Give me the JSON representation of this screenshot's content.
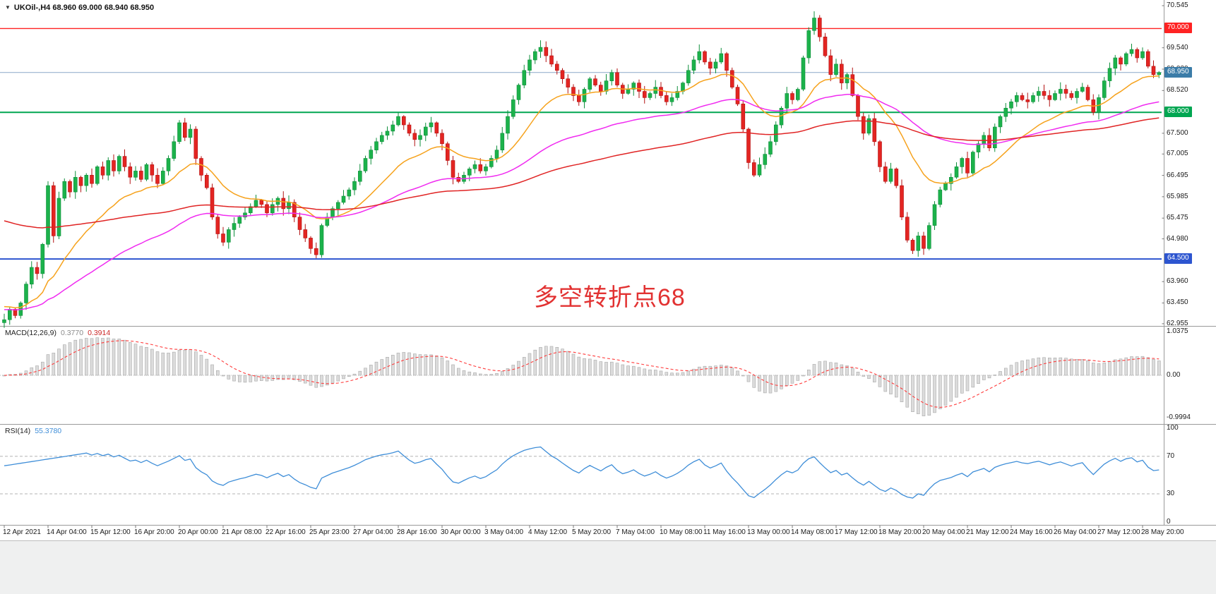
{
  "window": {
    "bg": "#ffffff",
    "bottom_strip_bg": "#eff0f0"
  },
  "header": {
    "dropdown_icon": "▼",
    "symbol_timeframe": "UKOil-,H4",
    "ohlc_values": "68.960 69.000 68.940 68.950"
  },
  "annotation": {
    "text": "多空转折点68",
    "color": "#e23232"
  },
  "chart_data": {
    "type": "candlestick",
    "symbol": "UKOil-",
    "timeframe": "H4",
    "last_bar": {
      "open": 68.96,
      "high": 69.0,
      "low": 68.94,
      "close": 68.95
    },
    "colors": {
      "bull": "#1cb24b",
      "bear": "#e32522",
      "bull_border": "#0f8f3c",
      "bear_border": "#b31212"
    },
    "price_axis": {
      "ticks": [
        "70.545",
        "69.540",
        "69.030",
        "68.520",
        "67.500",
        "67.005",
        "66.495",
        "65.985",
        "65.475",
        "64.980",
        "63.960",
        "63.450",
        "62.955"
      ]
    },
    "hlines": [
      {
        "price": 70.0,
        "label": "70.000",
        "color": "#ff2222",
        "width": 1.4
      },
      {
        "price": 68.0,
        "label": "68.000",
        "color": "#00a651",
        "width": 2
      },
      {
        "price": 64.5,
        "label": "64.500",
        "color": "#2d55d0",
        "width": 2
      }
    ],
    "current_price": {
      "value": 68.95,
      "label": "68.950",
      "line_color": "#8aa8c8",
      "label_bg": "#3b7ca8"
    },
    "moving_averages": [
      {
        "name": "ma-fast-orange",
        "period": 18,
        "seed": 63.4,
        "color": "#f6a21c"
      },
      {
        "name": "ma-mid-magenta",
        "period": 55,
        "seed": 63.3,
        "color": "#f02bf0"
      },
      {
        "name": "ma-slow-red",
        "period": 120,
        "seed": 65.45,
        "color": "#e02424"
      }
    ],
    "first_open": 62.98,
    "closes": [
      63.05,
      63.3,
      63.15,
      63.45,
      63.9,
      64.3,
      64.15,
      64.85,
      66.25,
      65.05,
      65.95,
      66.35,
      66.1,
      66.45,
      66.25,
      66.5,
      66.3,
      66.7,
      66.5,
      66.85,
      66.6,
      66.95,
      66.7,
      66.45,
      66.6,
      66.4,
      66.75,
      66.5,
      66.3,
      66.6,
      66.9,
      67.3,
      67.75,
      67.4,
      67.6,
      66.9,
      66.5,
      66.2,
      65.5,
      65.1,
      64.9,
      65.2,
      65.35,
      65.5,
      65.6,
      65.75,
      65.9,
      65.8,
      65.6,
      65.8,
      65.95,
      65.7,
      65.85,
      65.5,
      65.2,
      65.0,
      64.75,
      64.6,
      65.3,
      65.5,
      65.7,
      65.85,
      66.0,
      66.15,
      66.35,
      66.6,
      66.9,
      67.1,
      67.3,
      67.45,
      67.55,
      67.7,
      67.9,
      67.7,
      67.5,
      67.35,
      67.45,
      67.65,
      67.75,
      67.5,
      67.25,
      66.85,
      66.45,
      66.35,
      66.5,
      66.65,
      66.75,
      66.6,
      66.7,
      66.9,
      67.1,
      67.5,
      67.9,
      68.3,
      68.65,
      69.0,
      69.25,
      69.45,
      69.55,
      69.35,
      69.15,
      69.0,
      68.8,
      68.6,
      68.4,
      68.25,
      68.55,
      68.8,
      68.65,
      68.5,
      68.75,
      68.95,
      68.65,
      68.45,
      68.55,
      68.7,
      68.5,
      68.35,
      68.45,
      68.6,
      68.4,
      68.25,
      68.35,
      68.5,
      68.7,
      69.0,
      69.25,
      69.45,
      69.2,
      69.05,
      69.2,
      69.4,
      69.0,
      68.6,
      68.2,
      67.6,
      66.8,
      66.5,
      66.75,
      67.0,
      67.3,
      67.7,
      68.1,
      68.45,
      68.3,
      68.55,
      69.3,
      69.95,
      70.25,
      69.8,
      69.35,
      68.9,
      69.15,
      68.7,
      68.9,
      68.4,
      67.9,
      67.5,
      67.85,
      67.3,
      66.7,
      66.35,
      66.65,
      66.25,
      65.5,
      64.95,
      64.7,
      65.05,
      64.75,
      65.3,
      65.8,
      66.15,
      66.3,
      66.45,
      66.7,
      66.9,
      66.55,
      67.05,
      67.25,
      67.45,
      67.15,
      67.65,
      67.9,
      68.1,
      68.25,
      68.4,
      68.3,
      68.25,
      68.4,
      68.5,
      68.4,
      68.3,
      68.45,
      68.55,
      68.45,
      68.35,
      68.5,
      68.6,
      68.3,
      68.0,
      68.35,
      68.75,
      69.05,
      69.3,
      69.15,
      69.4,
      69.5,
      69.3,
      69.45,
      69.1,
      68.9,
      68.95
    ],
    "x_axis": {
      "bars_per_label": 8,
      "labels": [
        "12 Apr 2021",
        "14 Apr 04:00",
        "15 Apr 12:00",
        "16 Apr 20:00",
        "20 Apr 00:00",
        "21 Apr 08:00",
        "22 Apr 16:00",
        "25 Apr 23:00",
        "27 Apr 04:00",
        "28 Apr 16:00",
        "30 Apr 00:00",
        "3 May 04:00",
        "4 May 12:00",
        "5 May 20:00",
        "7 May 04:00",
        "10 May 08:00",
        "11 May 16:00",
        "13 May 00:00",
        "14 May 08:00",
        "17 May 12:00",
        "18 May 20:00",
        "20 May 04:00",
        "21 May 12:00",
        "24 May 16:00",
        "26 May 04:00",
        "27 May 12:00",
        "28 May 20:00"
      ]
    }
  },
  "macd": {
    "name": "MACD(12,26,9)",
    "value_main": "0.3770",
    "value_signal": "0.3914",
    "params": {
      "fast": 12,
      "slow": 26,
      "signal": 9
    },
    "axis_ticks": [
      {
        "label": "1.0375",
        "v": 1.0375
      },
      {
        "label": "0.00",
        "v": 0
      },
      {
        "label": "-0.9994",
        "v": -0.9994
      }
    ],
    "hist_color": "#dcdcdc",
    "hist_stroke": "#a8a8a8",
    "signal_color": "#ff3b3b"
  },
  "rsi": {
    "name": "RSI(14)",
    "value": "55.3780",
    "period": 14,
    "color": "#3f8ed8",
    "levels": [
      70,
      30
    ],
    "axis_ticks": [
      {
        "label": "100",
        "v": 100
      },
      {
        "label": "70",
        "v": 70
      },
      {
        "label": "30",
        "v": 30
      },
      {
        "label": "0",
        "v": 0
      }
    ]
  }
}
